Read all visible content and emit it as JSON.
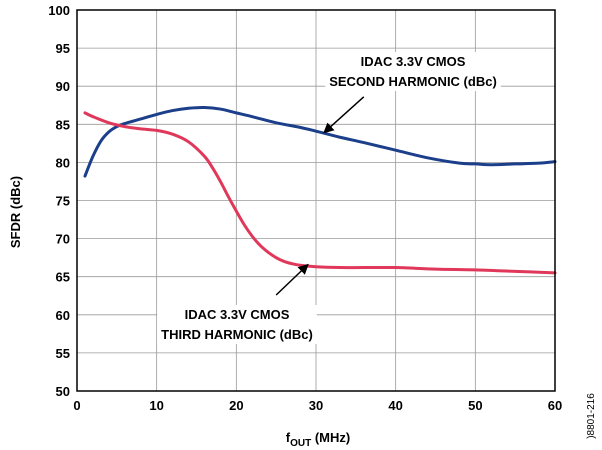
{
  "chart_data": {
    "type": "line",
    "xlabel": "f",
    "xlabel_sub": "OUT",
    "xlabel_unit": " (MHz)",
    "ylabel": "SFDR (dBc)",
    "xlim": [
      0,
      60
    ],
    "ylim": [
      50,
      100
    ],
    "xticks": [
      0,
      10,
      20,
      30,
      40,
      50,
      60
    ],
    "yticks": [
      50,
      55,
      60,
      65,
      70,
      75,
      80,
      85,
      90,
      95,
      100
    ],
    "grid": true,
    "figure_id": ")8801-216",
    "series": [
      {
        "name": "IDAC 3.3V CMOS SECOND HARMONIC (dBc)",
        "color": "#1b3f8a",
        "x": [
          1,
          2,
          3,
          4,
          5,
          6,
          7,
          8,
          10,
          12,
          14,
          16,
          18,
          20,
          22,
          25,
          28,
          30,
          33,
          36,
          40,
          44,
          48,
          50,
          52,
          55,
          58,
          60
        ],
        "y": [
          78.2,
          80.8,
          82.8,
          84.0,
          84.7,
          85.1,
          85.4,
          85.7,
          86.3,
          86.8,
          87.1,
          87.2,
          87.0,
          86.5,
          86.0,
          85.2,
          84.6,
          84.1,
          83.3,
          82.6,
          81.6,
          80.6,
          79.9,
          79.8,
          79.7,
          79.8,
          79.9,
          80.1
        ]
      },
      {
        "name": "IDAC 3.3V CMOS THIRD HARMONIC (dBc)",
        "color": "#e0385a",
        "x": [
          1,
          2,
          4,
          6,
          8,
          10,
          12,
          14,
          16,
          17,
          18,
          19,
          20,
          21,
          22,
          23,
          24,
          25,
          26,
          27,
          28,
          30,
          33,
          36,
          40,
          45,
          50,
          55,
          60
        ],
        "y": [
          86.5,
          86.0,
          85.2,
          84.7,
          84.4,
          84.2,
          83.7,
          82.7,
          80.8,
          79.3,
          77.5,
          75.5,
          73.6,
          71.8,
          70.3,
          69.1,
          68.2,
          67.5,
          67.0,
          66.7,
          66.5,
          66.3,
          66.2,
          66.2,
          66.2,
          66.0,
          65.9,
          65.7,
          65.5
        ]
      }
    ],
    "annotations": [
      {
        "lines": [
          "IDAC 3.3V CMOS",
          "SECOND HARMONIC (dBc)"
        ],
        "arrow_to": [
          31,
          83.9
        ],
        "arrow_from": [
          36,
          88.6
        ]
      },
      {
        "lines": [
          "IDAC 3.3V CMOS",
          "THIRD HARMONIC (dBc)"
        ],
        "arrow_to": [
          29,
          66.6
        ],
        "arrow_from": [
          25,
          62.6
        ]
      }
    ]
  }
}
